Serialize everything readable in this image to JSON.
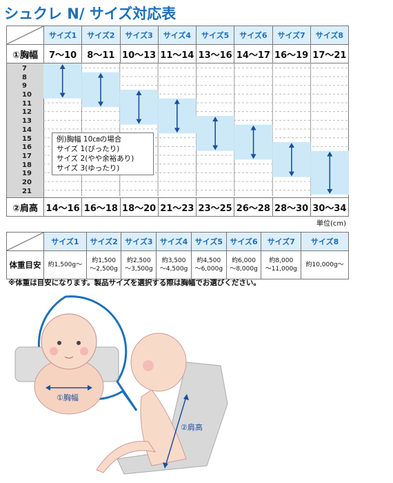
{
  "title": "シュクレ N/ サイズ対応表",
  "sizes": [
    "サイズ1",
    "サイズ2",
    "サイズ3",
    "サイズ4",
    "サイズ5",
    "サイズ6",
    "サイズ7",
    "サイズ8"
  ],
  "chest_label": "①胸幅",
  "chest_values": [
    "7～10",
    "8～11",
    "10～13",
    "11～14",
    "13～16",
    "14～17",
    "16～19",
    "17～21"
  ],
  "shoulder_label": "②肩高",
  "shoulder_values": [
    "14～16",
    "16～18",
    "18～20",
    "21～23",
    "23～25",
    "26～28",
    "28～30",
    "30～34"
  ],
  "scale_numbers": [
    "7",
    "8",
    "9",
    "10",
    "11",
    "12",
    "13",
    "14",
    "15",
    "16",
    "17",
    "18",
    "19",
    "20",
    "21"
  ],
  "example": {
    "line1": "例)胸幅 10㎝の場合",
    "line2": "サイズ 1(ぴったり)",
    "line3": "サイズ 2(やや余裕あり)",
    "line4": "サイズ 3(ゆったり)"
  },
  "unit": "単位(cm)",
  "weight_label": "体重目安",
  "weights": [
    {
      "a": "約1,500g～",
      "b": ""
    },
    {
      "a": "約1,500",
      "b": "～2,500g"
    },
    {
      "a": "約2,500",
      "b": "～3,500g"
    },
    {
      "a": "約3,500",
      "b": "～4,500g"
    },
    {
      "a": "約4,500",
      "b": "～6,000g"
    },
    {
      "a": "約6,000",
      "b": "～8,000g"
    },
    {
      "a": "約8,000",
      "b": "～11,000g"
    },
    {
      "a": "約10,000g～",
      "b": ""
    }
  ],
  "note": "※体重は目安になります。製品サイズを選択する際は胸幅でお選びください。",
  "illus_chest_label": "①胸幅",
  "illus_shoulder_label": "②肩高",
  "colors": {
    "title": "#1d6fb8",
    "band": "#cde9f8",
    "arrow": "#1d4f9c",
    "header_bg": "#dceef9"
  }
}
